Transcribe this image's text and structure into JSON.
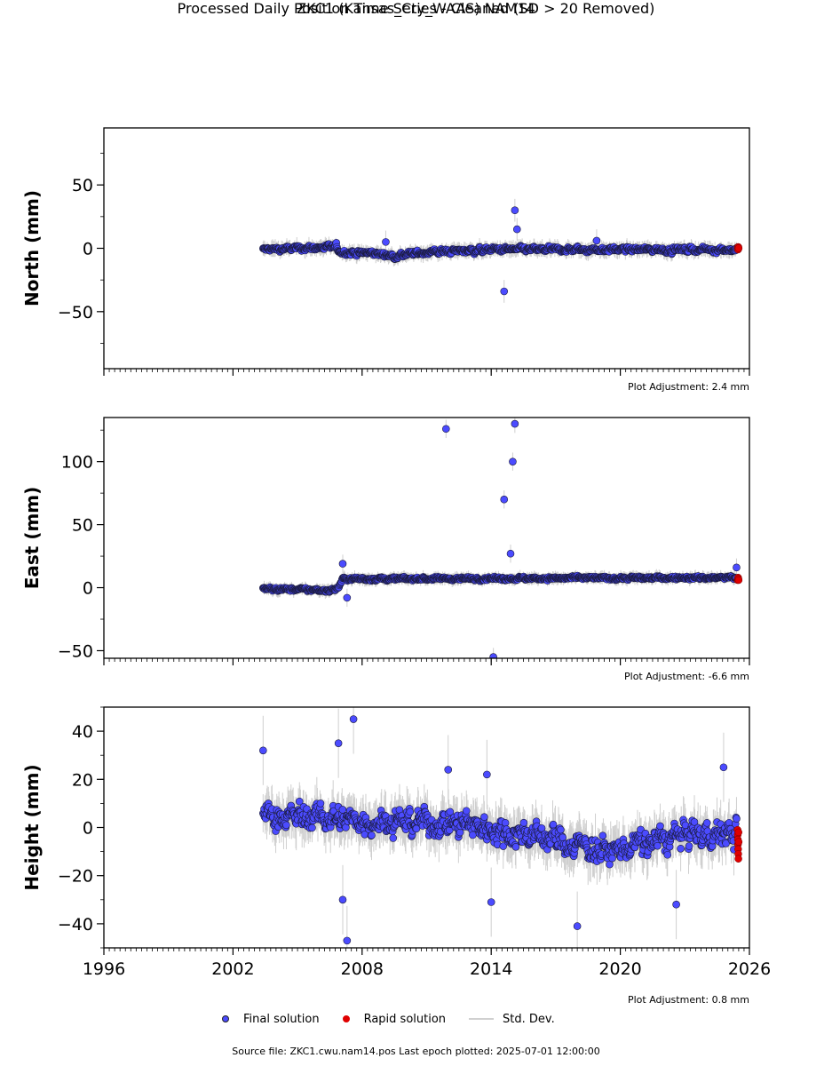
{
  "title": "ZKC1 (Kansas_Cty_WAAS) NAM14",
  "subtitle": "Processed Daily Position Time Series - Cleaned (SD > 20 Removed)",
  "source_text": "Source file: ZKC1.cwu.nam14.pos  Last epoch plotted: 2025-07-01 12:00:00",
  "legend": {
    "final": "Final solution",
    "rapid": "Rapid solution",
    "std": "Std. Dev."
  },
  "colors": {
    "final": "#4b4bff",
    "rapid": "#e00000",
    "std": "#cfcfcf",
    "edge": "#1a1a3a"
  },
  "chart_data": [
    {
      "type": "scatter",
      "panel": "north",
      "ylabel": "North (mm)",
      "xlim": [
        1996,
        2026
      ],
      "ylim": [
        -95,
        95
      ],
      "xticks": [
        1996,
        2002,
        2008,
        2014,
        2020,
        2026
      ],
      "yticks": [
        -50,
        0,
        50
      ],
      "adjustment": "Plot Adjustment: 2.4 mm",
      "show_x_labels": false,
      "series": [
        {
          "kind": "final",
          "trend": [
            [
              2003.4,
              -1
            ],
            [
              2006.8,
              1
            ],
            [
              2007.0,
              -3
            ],
            [
              2008.5,
              -4
            ],
            [
              2009.5,
              -6
            ],
            [
              2011.0,
              -3
            ],
            [
              2014.0,
              -1
            ],
            [
              2026,
              -1
            ]
          ],
          "noise": 3,
          "sigma": 5,
          "x_start": 2003.4,
          "x_end": 2025.4
        },
        {
          "kind": "rapid",
          "x_start": 2025.45,
          "x_end": 2025.5,
          "values": [
            0,
            1,
            -1,
            1,
            0
          ]
        }
      ],
      "outliers": [
        [
          2014.6,
          -34
        ],
        [
          2015.1,
          30
        ],
        [
          2015.2,
          15
        ],
        [
          2009.1,
          5
        ],
        [
          2018.9,
          6
        ]
      ]
    },
    {
      "type": "scatter",
      "panel": "east",
      "ylabel": "East (mm)",
      "xlim": [
        1996,
        2026
      ],
      "ylim": [
        -56,
        135
      ],
      "xticks": [
        1996,
        2002,
        2008,
        2014,
        2020,
        2026
      ],
      "yticks": [
        -50,
        0,
        50,
        100
      ],
      "adjustment": "Plot Adjustment: -6.6 mm",
      "show_x_labels": false,
      "series": [
        {
          "kind": "final",
          "trend": [
            [
              2003.4,
              -1
            ],
            [
              2006.6,
              -2
            ],
            [
              2006.9,
              0
            ],
            [
              2007.1,
              7
            ],
            [
              2008.0,
              7
            ],
            [
              2026,
              8
            ]
          ],
          "noise": 2,
          "sigma": 4,
          "x_start": 2003.4,
          "x_end": 2025.4
        },
        {
          "kind": "rapid",
          "x_start": 2025.45,
          "x_end": 2025.5,
          "values": [
            6,
            7,
            8,
            7,
            6
          ]
        }
      ],
      "outliers": [
        [
          2011.9,
          126
        ],
        [
          2014.6,
          70
        ],
        [
          2015.0,
          100
        ],
        [
          2015.1,
          130
        ],
        [
          2014.9,
          27
        ],
        [
          2014.1,
          -55
        ],
        [
          2007.1,
          19
        ],
        [
          2007.3,
          -8
        ],
        [
          2025.4,
          16
        ]
      ]
    },
    {
      "type": "scatter",
      "panel": "height",
      "ylabel": "Height (mm)",
      "xlim": [
        1996,
        2026
      ],
      "ylim": [
        -50,
        50
      ],
      "xticks": [
        1996,
        2002,
        2008,
        2014,
        2020,
        2026
      ],
      "yticks": [
        -40,
        -20,
        0,
        20,
        40
      ],
      "adjustment": "Plot Adjustment: 0.8 mm",
      "show_x_labels": true,
      "series": [
        {
          "kind": "final",
          "trend": [
            [
              2003.4,
              5
            ],
            [
              2008.0,
              3
            ],
            [
              2012.0,
              2
            ],
            [
              2016.0,
              -3
            ],
            [
              2019.5,
              -10
            ],
            [
              2023.0,
              -3
            ],
            [
              2026,
              -2
            ]
          ],
          "noise": 8,
          "sigma": 8,
          "x_start": 2003.4,
          "x_end": 2025.4
        },
        {
          "kind": "rapid",
          "x_start": 2025.45,
          "x_end": 2025.5,
          "values": [
            -1,
            -3,
            -5,
            -7,
            -9,
            -11,
            -13,
            -2,
            -6
          ]
        }
      ],
      "outliers": [
        [
          2003.4,
          32
        ],
        [
          2007.6,
          45
        ],
        [
          2007.3,
          -47
        ],
        [
          2007.1,
          -30
        ],
        [
          2012.0,
          24
        ],
        [
          2014.0,
          -31
        ],
        [
          2018.0,
          -41
        ],
        [
          2022.6,
          -32
        ],
        [
          2024.8,
          25
        ],
        [
          2006.9,
          35
        ],
        [
          2013.8,
          22
        ]
      ]
    }
  ]
}
